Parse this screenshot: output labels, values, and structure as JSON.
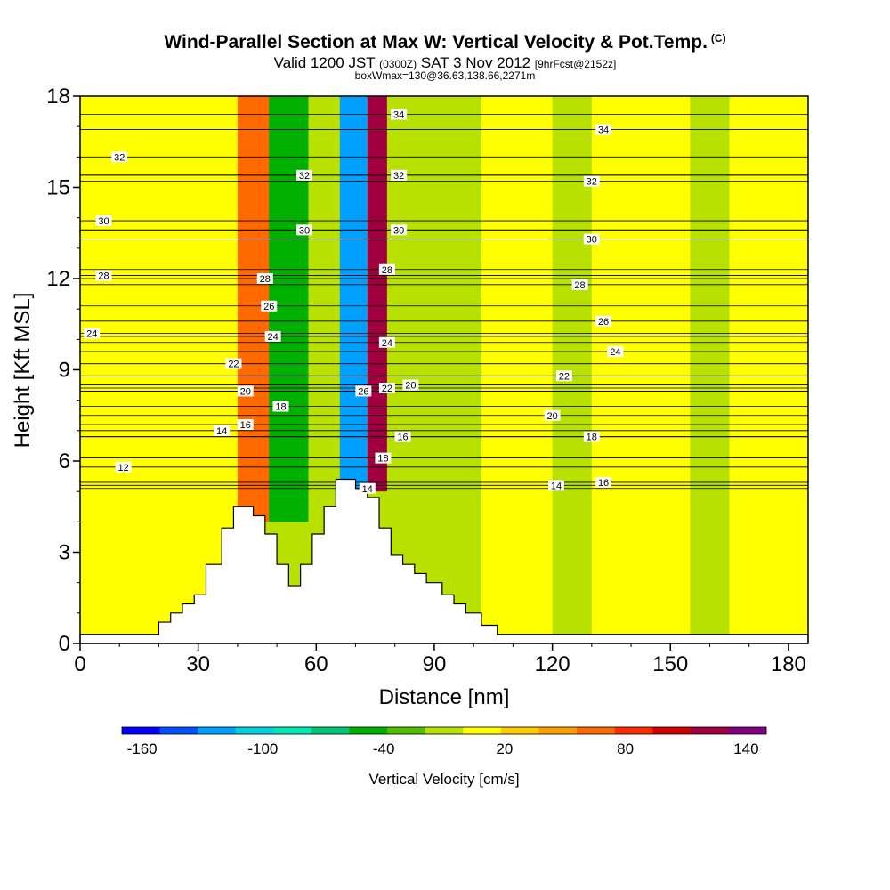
{
  "title": {
    "main": "Wind-Parallel Section at Max W: Vertical Velocity & Pot.Temp.",
    "main_tag": "(C)",
    "valid_prefix": "Valid 1200 JST",
    "valid_zulu": "(0300Z)",
    "valid_date": "SAT 3 Nov 2012",
    "valid_fcst": "[9hrFcst@2152z]",
    "box_line": "boxWmax=130@36.63,138.66,2271m"
  },
  "chart_data": {
    "type": "heatmap",
    "xlabel": "Distance [nm]",
    "ylabel": "Height [Kft MSL]",
    "xlim": [
      0,
      185
    ],
    "ylim": [
      0,
      18
    ],
    "x_ticks": [
      0,
      30,
      60,
      90,
      120,
      150,
      180
    ],
    "y_ticks": [
      0,
      3,
      6,
      9,
      12,
      15,
      18
    ],
    "colorbar": {
      "label": "Vertical Velocity [cm/s]",
      "range": [
        -170,
        150
      ],
      "bin_width": 20,
      "tick_labels": [
        -160,
        -100,
        -40,
        20,
        80,
        140
      ],
      "colors": [
        "#0000ff",
        "#0050ff",
        "#00a0ff",
        "#00d0e0",
        "#00e8b0",
        "#00c878",
        "#00b000",
        "#50c000",
        "#b8e000",
        "#ffff00",
        "#ffcc00",
        "#ffa000",
        "#ff6a00",
        "#ff2a00",
        "#d00000",
        "#a00040",
        "#800080"
      ]
    },
    "terrain": [
      [
        0,
        0.3
      ],
      [
        20,
        0.3
      ],
      [
        20,
        0.7
      ],
      [
        23,
        0.7
      ],
      [
        23,
        1.0
      ],
      [
        26,
        1.0
      ],
      [
        26,
        1.3
      ],
      [
        29,
        1.3
      ],
      [
        29,
        1.6
      ],
      [
        32,
        1.6
      ],
      [
        32,
        2.6
      ],
      [
        36,
        2.6
      ],
      [
        36,
        3.8
      ],
      [
        39,
        3.8
      ],
      [
        39,
        4.5
      ],
      [
        44,
        4.5
      ],
      [
        44,
        4.2
      ],
      [
        47,
        4.2
      ],
      [
        47,
        3.6
      ],
      [
        50,
        3.6
      ],
      [
        50,
        2.6
      ],
      [
        53,
        2.6
      ],
      [
        53,
        1.9
      ],
      [
        56,
        1.9
      ],
      [
        56,
        2.6
      ],
      [
        59,
        2.6
      ],
      [
        59,
        3.6
      ],
      [
        62,
        3.6
      ],
      [
        62,
        4.5
      ],
      [
        65,
        4.5
      ],
      [
        65,
        5.4
      ],
      [
        70,
        5.4
      ],
      [
        70,
        5.1
      ],
      [
        73,
        5.1
      ],
      [
        73,
        4.8
      ],
      [
        76,
        4.8
      ],
      [
        76,
        3.8
      ],
      [
        79,
        3.8
      ],
      [
        79,
        2.9
      ],
      [
        82,
        2.9
      ],
      [
        82,
        2.6
      ],
      [
        85,
        2.6
      ],
      [
        85,
        2.3
      ],
      [
        88,
        2.3
      ],
      [
        88,
        2.0
      ],
      [
        92,
        2.0
      ],
      [
        92,
        1.6
      ],
      [
        95,
        1.6
      ],
      [
        95,
        1.3
      ],
      [
        98,
        1.3
      ],
      [
        98,
        1.0
      ],
      [
        102,
        1.0
      ],
      [
        102,
        0.6
      ],
      [
        106,
        0.6
      ],
      [
        106,
        0.3
      ],
      [
        185,
        0.3
      ]
    ],
    "w_field_zones": [
      {
        "x": [
          0,
          185
        ],
        "y": [
          0,
          18
        ],
        "w": 0
      },
      {
        "x": [
          0,
          40
        ],
        "y": [
          0,
          18
        ],
        "w": 10
      },
      {
        "x": [
          102,
          120
        ],
        "y": [
          0,
          18
        ],
        "w": 20
      },
      {
        "x": [
          130,
          155
        ],
        "y": [
          0,
          18
        ],
        "w": 15
      },
      {
        "x": [
          165,
          185
        ],
        "y": [
          0,
          18
        ],
        "w": 20
      },
      {
        "x": [
          40,
          50
        ],
        "y": [
          4,
          18
        ],
        "w": 80
      },
      {
        "x": [
          48,
          58
        ],
        "y": [
          4,
          18
        ],
        "w": -50
      },
      {
        "x": [
          66,
          73
        ],
        "y": [
          5,
          18
        ],
        "w": -120
      },
      {
        "x": [
          73,
          78
        ],
        "y": [
          5,
          18
        ],
        "w": 140
      }
    ],
    "theta_contours": [
      {
        "label": "12",
        "label_at": [
          11,
          5.8
        ]
      },
      {
        "label": "14",
        "label_at": [
          36,
          7.0
        ]
      },
      {
        "label": "16",
        "label_at": [
          42,
          7.2
        ]
      },
      {
        "label": "18",
        "label_at": [
          51,
          7.8
        ]
      },
      {
        "label": "20",
        "label_at": [
          42,
          8.3
        ]
      },
      {
        "label": "22",
        "label_at": [
          39,
          9.2
        ]
      },
      {
        "label": "24",
        "label_at": [
          49,
          10.1
        ]
      },
      {
        "label": "26",
        "label_at": [
          48,
          11.1
        ]
      },
      {
        "label": "28",
        "label_at": [
          47,
          12.0
        ]
      },
      {
        "label": "28",
        "label_at": [
          6,
          12.1
        ]
      },
      {
        "label": "30",
        "label_at": [
          6,
          13.9
        ]
      },
      {
        "label": "32",
        "label_at": [
          10,
          16.0
        ]
      },
      {
        "label": "32",
        "label_at": [
          57,
          15.4
        ]
      },
      {
        "label": "30",
        "label_at": [
          57,
          13.6
        ]
      },
      {
        "label": "34",
        "label_at": [
          81,
          17.4
        ]
      },
      {
        "label": "32",
        "label_at": [
          81,
          15.4
        ]
      },
      {
        "label": "30",
        "label_at": [
          81,
          13.6
        ]
      },
      {
        "label": "28",
        "label_at": [
          78,
          12.3
        ]
      },
      {
        "label": "24",
        "label_at": [
          78,
          9.9
        ]
      },
      {
        "label": "22",
        "label_at": [
          78,
          8.4
        ]
      },
      {
        "label": "26",
        "label_at": [
          72,
          8.3
        ]
      },
      {
        "label": "20",
        "label_at": [
          84,
          8.5
        ]
      },
      {
        "label": "18",
        "label_at": [
          77,
          6.1
        ]
      },
      {
        "label": "16",
        "label_at": [
          82,
          6.8
        ]
      },
      {
        "label": "14",
        "label_at": [
          73,
          5.1
        ]
      },
      {
        "label": "34",
        "label_at": [
          133,
          16.9
        ]
      },
      {
        "label": "32",
        "label_at": [
          130,
          15.2
        ]
      },
      {
        "label": "30",
        "label_at": [
          130,
          13.3
        ]
      },
      {
        "label": "28",
        "label_at": [
          127,
          11.8
        ]
      },
      {
        "label": "26",
        "label_at": [
          133,
          10.6
        ]
      },
      {
        "label": "24",
        "label_at": [
          136,
          9.6
        ]
      },
      {
        "label": "22",
        "label_at": [
          123,
          8.8
        ]
      },
      {
        "label": "20",
        "label_at": [
          120,
          7.5
        ]
      },
      {
        "label": "18",
        "label_at": [
          130,
          6.8
        ]
      },
      {
        "label": "16",
        "label_at": [
          133,
          5.3
        ]
      },
      {
        "label": "14",
        "label_at": [
          121,
          5.2
        ]
      },
      {
        "label": "24",
        "label_at": [
          3,
          10.2
        ]
      }
    ]
  }
}
